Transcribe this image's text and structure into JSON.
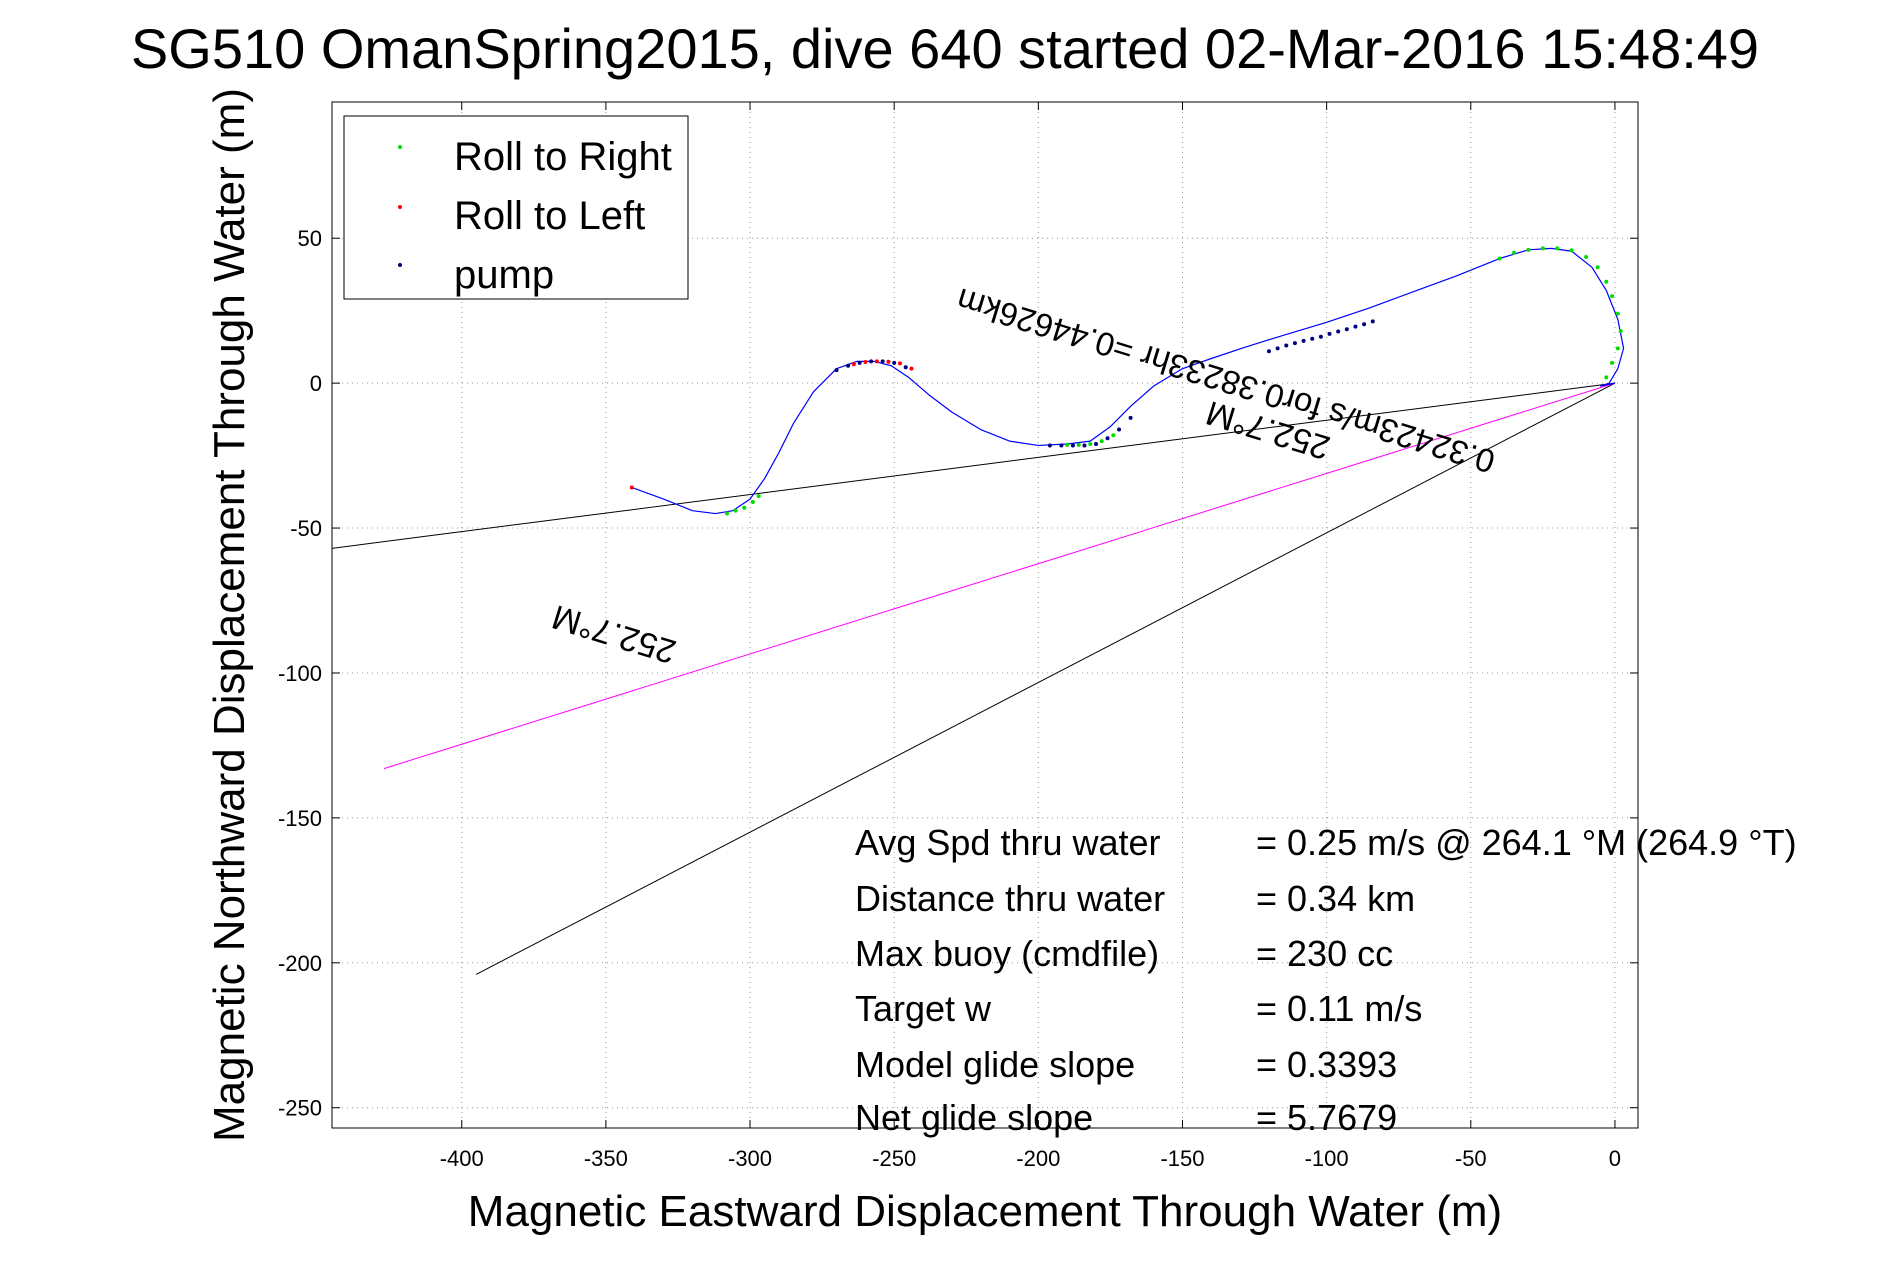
{
  "chart_data": {
    "type": "scatter",
    "title": "SG510 OmanSpring2015, dive 640 started 02-Mar-2016 15:48:49",
    "xlabel": "Magnetic Eastward Displacement Through Water (m)",
    "ylabel": "Magnetic Northward Displacement Through Water (m)",
    "xlim": [
      -445,
      8
    ],
    "ylim": [
      -257,
      97
    ],
    "xticks": [
      -400,
      -350,
      -300,
      -250,
      -200,
      -150,
      -100,
      -50,
      0
    ],
    "yticks": [
      -250,
      -200,
      -150,
      -100,
      -50,
      0,
      50
    ],
    "grid": true,
    "legend_position": "top-left",
    "legend": [
      {
        "label": "Roll to Right",
        "color": "#00dd00"
      },
      {
        "label": "Roll to Left",
        "color": "#ff0000"
      },
      {
        "label": "pump",
        "color": "#000080"
      }
    ],
    "track": {
      "color": "#0000ff",
      "x": [
        -341,
        -330,
        -320,
        -312,
        -306,
        -300,
        -295,
        -290,
        -285,
        -278,
        -270,
        -263,
        -257,
        -251,
        -245,
        -238,
        -230,
        -220,
        -210,
        -200,
        -190,
        -182,
        -175,
        -168,
        -160,
        -150,
        -140,
        -128,
        -115,
        -100,
        -85,
        -70,
        -55,
        -40,
        -30,
        -22,
        -15,
        -8,
        -3,
        1,
        3,
        1,
        -2,
        -5,
        0
      ],
      "y": [
        -36,
        -40,
        -44,
        -45,
        -44,
        -40,
        -33,
        -24,
        -14,
        -3,
        5,
        7.5,
        7.5,
        6,
        2,
        -4,
        -10,
        -16,
        -20,
        -21.5,
        -21,
        -20,
        -15,
        -8,
        -1,
        5,
        8.5,
        12.5,
        16.5,
        21,
        26,
        31.5,
        37,
        43,
        46,
        46.5,
        45.5,
        40,
        32,
        22,
        12,
        5,
        0,
        -1,
        0
      ]
    },
    "series": [
      {
        "name": "Roll to Right",
        "color": "#00dd00",
        "x": [
          -308,
          -305,
          -302,
          -299,
          -297,
          -40,
          -35,
          -30,
          -25,
          -20,
          -15,
          -10,
          -6,
          -3,
          -1,
          1,
          2,
          1,
          -1,
          -3,
          -190,
          -186,
          -182,
          -178,
          -174
        ],
        "y": [
          -45,
          -44,
          -43,
          -41,
          -39,
          43,
          45,
          46,
          46.5,
          46.5,
          45.8,
          43.5,
          40,
          35,
          30,
          24,
          18,
          12,
          7,
          2,
          -21.3,
          -21.3,
          -21,
          -20,
          -18
        ]
      },
      {
        "name": "Roll to Left",
        "color": "#ff0000",
        "x": [
          -341,
          -264,
          -260,
          -256,
          -252,
          -248,
          -244
        ],
        "y": [
          -36,
          6.5,
          7.3,
          7.5,
          7.4,
          6.8,
          5
        ]
      },
      {
        "name": "pump",
        "color": "#000080",
        "x": [
          -270,
          -266,
          -262,
          -258,
          -254,
          -250,
          -246,
          -196,
          -192,
          -188,
          -184,
          -180,
          -176,
          -172,
          -168,
          -120,
          -117,
          -114,
          -111,
          -108,
          -105,
          -102,
          -99,
          -96,
          -93,
          -90,
          -87,
          -84
        ],
        "y": [
          4.5,
          6,
          7,
          7.5,
          7.5,
          7,
          5.5,
          -21.5,
          -21.5,
          -21.5,
          -21.5,
          -21,
          -19,
          -16,
          -12,
          11,
          12,
          13,
          13.8,
          14.6,
          15.3,
          16,
          17,
          17.8,
          18.6,
          19.5,
          20.3,
          21.3
        ]
      }
    ],
    "lines": [
      {
        "color": "#000000",
        "x": [
          0,
          -445
        ],
        "y": [
          0,
          -57
        ]
      },
      {
        "color": "#000000",
        "x": [
          0,
          -395
        ],
        "y": [
          0,
          -204
        ]
      },
      {
        "color": "#ff00ff",
        "x": [
          0,
          -427
        ],
        "y": [
          0,
          -133
        ]
      }
    ],
    "annotations": {
      "slope_line_text": "0.32423m/s for0.38233hr =0.44626km",
      "heading_near": "252.7°M",
      "heading_far": "252.7°M",
      "stats": [
        {
          "label": "Avg Spd thru water",
          "value": "=  0.25 m/s @ 264.1 °M (264.9 °T)"
        },
        {
          "label": "Distance thru water",
          "value": "=  0.34 km"
        },
        {
          "label": "Max buoy (cmdfile)",
          "value": "= 230 cc"
        },
        {
          "label": "Target w",
          "value": "= 0.11 m/s"
        },
        {
          "label": "Model glide slope",
          "value": "= 0.3393"
        },
        {
          "label": "Net glide slope",
          "value": "= 5.7679"
        }
      ]
    }
  }
}
